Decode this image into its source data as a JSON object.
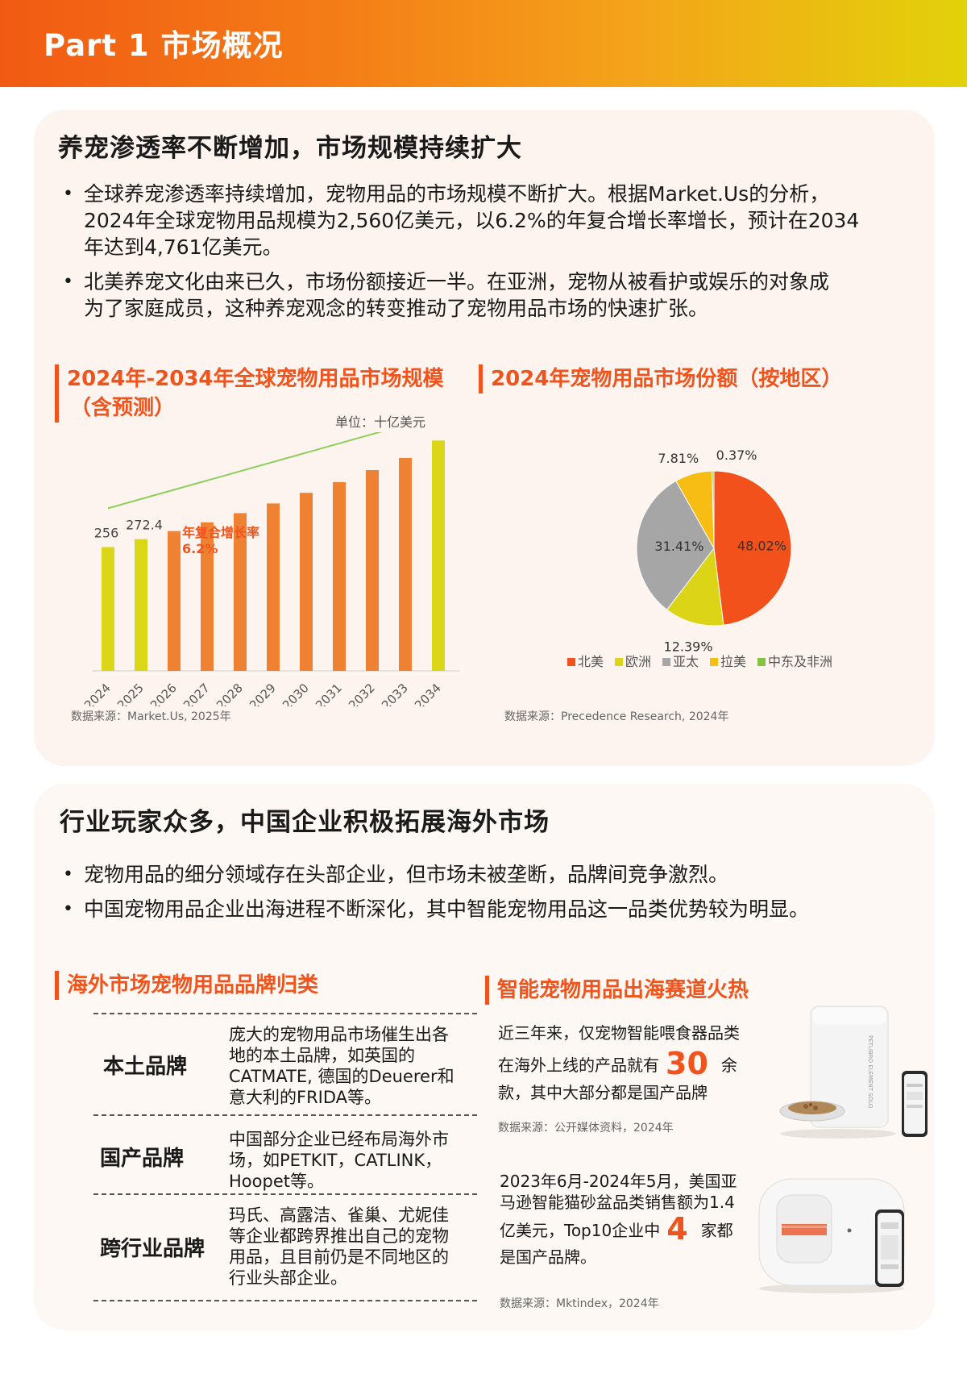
{
  "header": {
    "title": "Part 1 市场概况"
  },
  "section1": {
    "title": "养宠渗透率不断增加，市场规模持续扩大",
    "bullets": [
      [
        "全球养宠渗透率持续增加，宠物用品的市场规模不断扩大。根据Market.Us的分析，",
        "2024年全球宠物用品规模为2,560亿美元，以6.2%的年复合增长率增长，预计在2034",
        "年达到4,761亿美元。"
      ],
      [
        "北美养宠文化由来已久，市场份额接近一半。在亚洲，宠物从被看护或娱乐的对象成",
        "为了家庭成员，这种养宠观念的转变推动了宠物用品市场的快速扩张。"
      ]
    ]
  },
  "bar_chart": {
    "title_line1": "2024年-2034年全球宠物用品市场规模",
    "title_line2": "（含预测）",
    "unit": "单位：十亿美元",
    "cagr_label1": "年复合增长率",
    "cagr_label2": "6.2%",
    "source": "数据来源：Market.Us, 2025年"
  },
  "pie_chart": {
    "title": "2024年宠物用品市场份额（按地区）",
    "source": "数据来源：Precedence Research, 2024年"
  },
  "chart_data": [
    {
      "type": "bar",
      "title": "2024年-2034年全球宠物用品市场规模（含预测）",
      "ylabel": "单位：十亿美元",
      "categories": [
        "2024",
        "2025",
        "2026",
        "2027",
        "2028",
        "2029",
        "2030",
        "2031",
        "2032",
        "2033",
        "2034"
      ],
      "values": [
        256,
        272.4,
        289,
        307,
        326,
        346,
        368,
        390,
        415,
        440,
        476.1
      ],
      "data_labels": {
        "0": "256",
        "1": "272.4",
        "10": "476.1"
      },
      "highlight_indices": [
        0,
        1,
        10
      ],
      "ylim": [
        0,
        500
      ],
      "colors": {
        "normal": "#ef8133",
        "highlight": "#dcd619",
        "arrow": "#8ccf5a",
        "label": "#f0541c"
      }
    },
    {
      "type": "pie",
      "title": "2024年宠物用品市场份额（按地区）",
      "labels": [
        "北美",
        "欧洲",
        "亚太",
        "拉美",
        "中东及非洲"
      ],
      "values": [
        48.02,
        12.39,
        31.41,
        7.81,
        0.37
      ],
      "value_labels": [
        "48.02%",
        "12.39%",
        "31.41%",
        "7.81%",
        "0.37%"
      ],
      "colors": [
        "#f2511b",
        "#dcd416",
        "#a6a6a6",
        "#f7bd14",
        "#82c341"
      ],
      "legend_position": "bottom"
    }
  ],
  "section2": {
    "title": "行业玩家众多，中国企业积极拓展海外市场",
    "bullets": [
      [
        "宠物用品的细分领域存在头部企业，但市场未被垄断，品牌间竞争激烈。"
      ],
      [
        "中国宠物用品企业出海进程不断深化，其中智能宠物用品这一品类优势较为明显。"
      ]
    ]
  },
  "brands": {
    "title": "海外市场宠物用品品牌归类",
    "rows": [
      {
        "name": "本土品牌",
        "desc": [
          "庞大的宠物用品市场催生出各",
          "地的本土品牌，如英国的",
          "CATMATE, 德国的Deuerer和",
          "意大利的FRIDA等。"
        ]
      },
      {
        "name": "国产品牌",
        "desc": [
          "中国部分企业已经布局海外市",
          "场，如PETKIT，CATLINK，",
          "Hoopet等。"
        ]
      },
      {
        "name": "跨行业品牌",
        "desc": [
          "玛氏、高露洁、雀巢、尤妮佳",
          "等企业都跨界推出自己的宠物",
          "用品，且目前仍是不同地区的",
          "行业头部企业。"
        ]
      }
    ]
  },
  "smart": {
    "title": "智能宠物用品出海赛道火热",
    "block1": {
      "line1": "近三年来，仅宠物智能喂食器品类",
      "line2_pre": "在海外上线的产品就有",
      "number": "30",
      "line2_post": "余",
      "line3": "款，其中大部分都是国产品牌",
      "source": "数据来源：公开媒体资料，2024年"
    },
    "block2": {
      "line1": "2023年6月-2024年5月，美国亚",
      "line2": "马逊智能猫砂盆品类销售额为1.4",
      "line3_pre": "亿美元，Top10企业中",
      "number": "4",
      "line3_post": "家都",
      "line4": "是国产品牌。",
      "source": "数据来源：Mktindex，2024年"
    },
    "feeder_brand_text": "PETLIBRO ELEMENT SOLO"
  }
}
